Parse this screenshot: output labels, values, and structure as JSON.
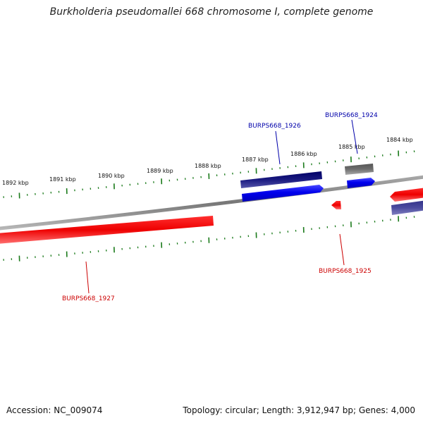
{
  "title": "Burkholderia pseudomallei 668 chromosome I, complete genome",
  "footer": {
    "accession": "Accession: NC_009074",
    "topology": "Topology: circular; Length: 3,912,947 bp; Genes: 4,000"
  },
  "tick_labels": [
    "1892 kbp",
    "1891 kbp",
    "1890 kbp",
    "1889 kbp",
    "1888 kbp",
    "1887 kbp",
    "1886 kbp",
    "1885 kbp",
    "1884 kbp"
  ],
  "gene_labels": {
    "g1924": "BURPS668_1924",
    "g1925": "BURPS668_1925",
    "g1926": "BURPS668_1926",
    "g1927": "BURPS668_1927"
  },
  "colors": {
    "forward_gene": "#0000ee",
    "reverse_gene": "#ee0000",
    "forward_label": "#0000aa",
    "reverse_label": "#cc0000",
    "cog_dark": "#1a1a80",
    "cog_slate": "#4a4a9e",
    "cog_gray": "#6e6e6e",
    "backbone": "#888888",
    "ticks": "#1a7a1a"
  }
}
